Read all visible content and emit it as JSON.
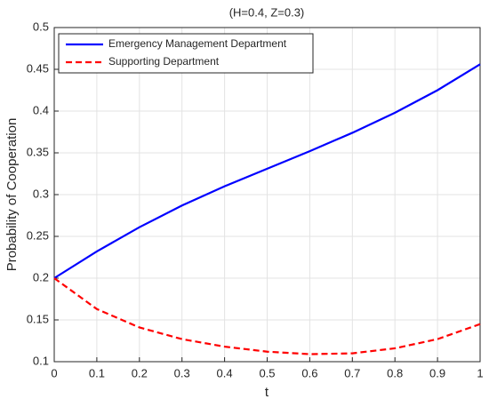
{
  "chart_data": {
    "type": "line",
    "title": "(H=0.4, Z=0.3)",
    "x_label": "t",
    "y_label": "Probability of Cooperation",
    "x": [
      0,
      0.1,
      0.2,
      0.3,
      0.4,
      0.5,
      0.6,
      0.7,
      0.8,
      0.9,
      1
    ],
    "series": [
      {
        "name": "Emergency Management Department",
        "color": "#0000ff",
        "linestyle": "solid",
        "values": [
          0.2,
          0.232,
          0.261,
          0.287,
          0.31,
          0.331,
          0.352,
          0.374,
          0.398,
          0.425,
          0.456
        ]
      },
      {
        "name": "Supporting Department",
        "color": "#ff0000",
        "linestyle": "dashed",
        "values": [
          0.2,
          0.163,
          0.141,
          0.127,
          0.118,
          0.112,
          0.109,
          0.11,
          0.116,
          0.127,
          0.145
        ]
      }
    ],
    "xlim": [
      0,
      1
    ],
    "xticks": [
      0,
      0.1,
      0.2,
      0.3,
      0.4,
      0.5,
      0.6,
      0.7,
      0.8,
      0.9,
      1
    ],
    "ylim": [
      0.1,
      0.5
    ],
    "yticks": [
      0.1,
      0.15,
      0.2,
      0.25,
      0.3,
      0.35,
      0.4,
      0.45,
      0.5
    ],
    "grid": true,
    "legend": "upper left"
  }
}
